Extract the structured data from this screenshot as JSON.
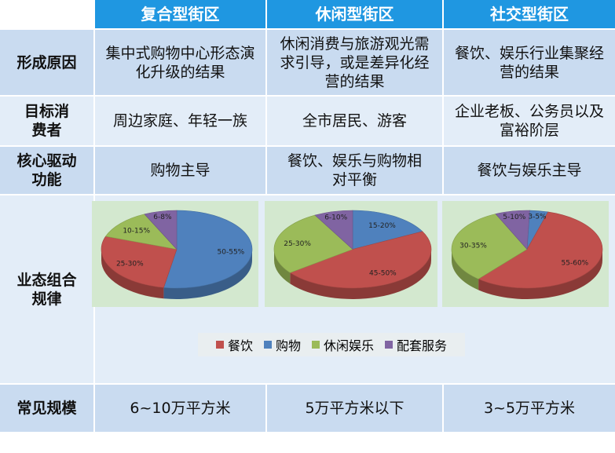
{
  "columns": [
    "复合型街区",
    "休闲型街区",
    "社交型街区"
  ],
  "rows": [
    {
      "label": "形成原因",
      "cells": [
        "集中式购物中心形态演化升级的结果",
        "休闲消费与旅游观光需求引导，或是差异化经营的结果",
        "餐饮、娱乐行业集聚经营的结果"
      ]
    },
    {
      "label": "目标消费者",
      "cells": [
        "周边家庭、年轻一族",
        "全市居民、游客",
        "企业老板、公务员以及富裕阶层"
      ]
    },
    {
      "label": "核心驱动功能",
      "cells": [
        "购物主导",
        "餐饮、娱乐与购物相对平衡",
        "餐饮与娱乐主导"
      ]
    },
    {
      "label": "业态组合规律"
    },
    {
      "label": "常见规模",
      "cells": [
        "6~10万平方米",
        "5万平方米以下",
        "3~5万平方米"
      ]
    }
  ],
  "legend": [
    {
      "name": "餐饮",
      "color": "#c0504d"
    },
    {
      "name": "购物",
      "color": "#4f81bd"
    },
    {
      "name": "休闲娱乐",
      "color": "#9bbb59"
    },
    {
      "name": "配套服务",
      "color": "#8064a2"
    }
  ],
  "pies": [
    {
      "slices": [
        {
          "category": "购物",
          "value": 52.5,
          "label": "50-55%"
        },
        {
          "category": "餐饮",
          "value": 27.5,
          "label": "25-30%"
        },
        {
          "category": "休闲娱乐",
          "value": 12.5,
          "label": "10-15%"
        },
        {
          "category": "配套服务",
          "value": 7,
          "label": "6-8%"
        }
      ]
    },
    {
      "slices": [
        {
          "category": "购物",
          "value": 17.5,
          "label": "15-20%"
        },
        {
          "category": "餐饮",
          "value": 47.5,
          "label": "45-50%"
        },
        {
          "category": "休闲娱乐",
          "value": 27.5,
          "label": "25-30%"
        },
        {
          "category": "配套服务",
          "value": 8,
          "label": "6-10%"
        }
      ]
    },
    {
      "slices": [
        {
          "category": "购物",
          "value": 4,
          "label": "3-5%"
        },
        {
          "category": "餐饮",
          "value": 57.5,
          "label": "55-60%"
        },
        {
          "category": "休闲娱乐",
          "value": 32.5,
          "label": "30-35%"
        },
        {
          "category": "配套服务",
          "value": 7.5,
          "label": "5-10%"
        }
      ]
    }
  ]
}
